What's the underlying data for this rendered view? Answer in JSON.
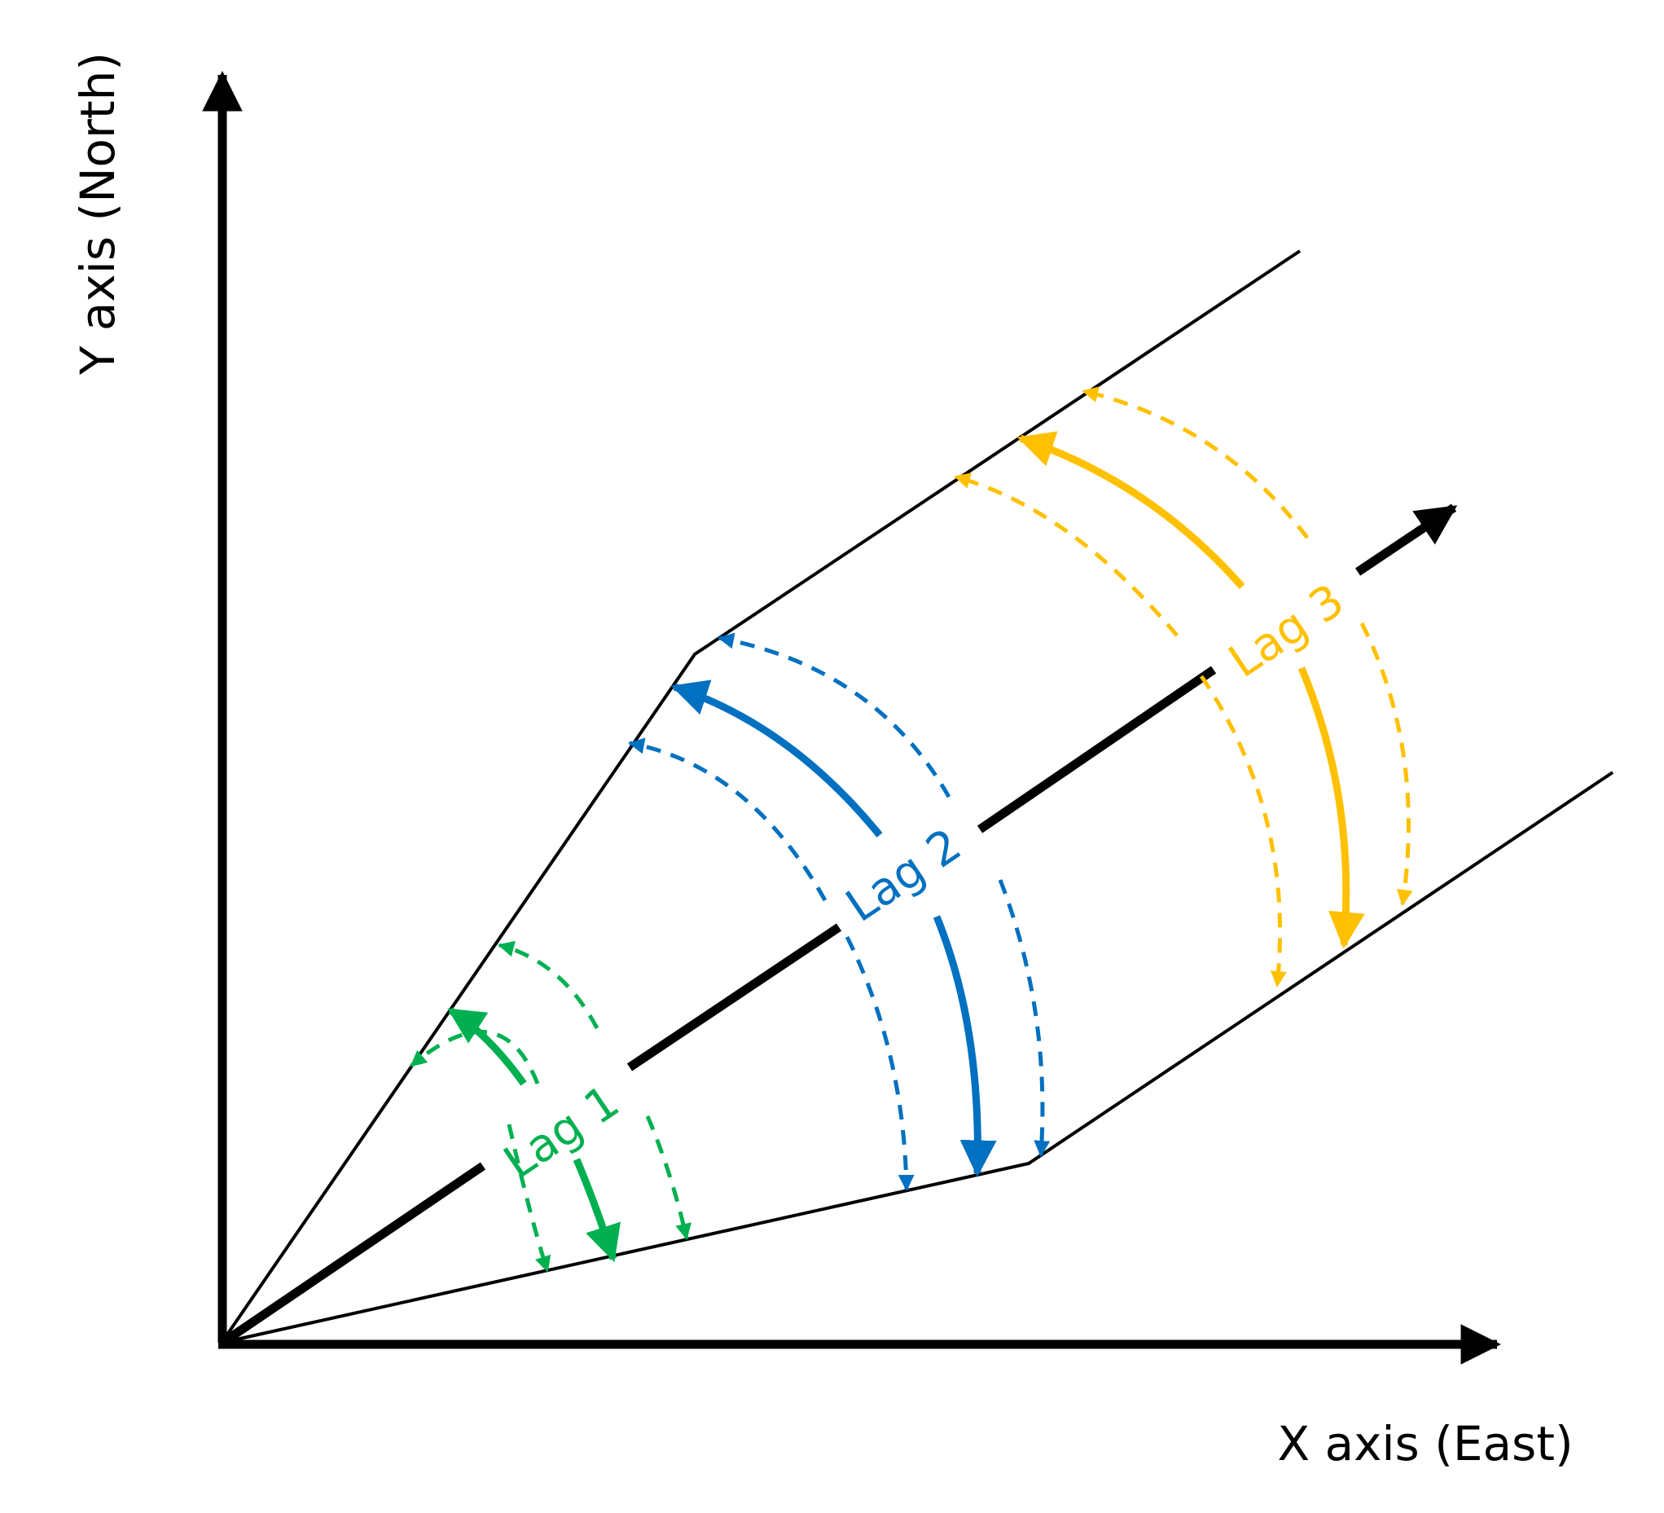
{
  "axes": {
    "x_label": "X axis (East)",
    "y_label": "Y axis (North)"
  },
  "lags": [
    {
      "label": "Lag 1",
      "color": "#00b050"
    },
    {
      "label": "Lag 2",
      "color": "#0070c0"
    },
    {
      "label": "Lag 3",
      "color": "#ffc000"
    }
  ]
}
